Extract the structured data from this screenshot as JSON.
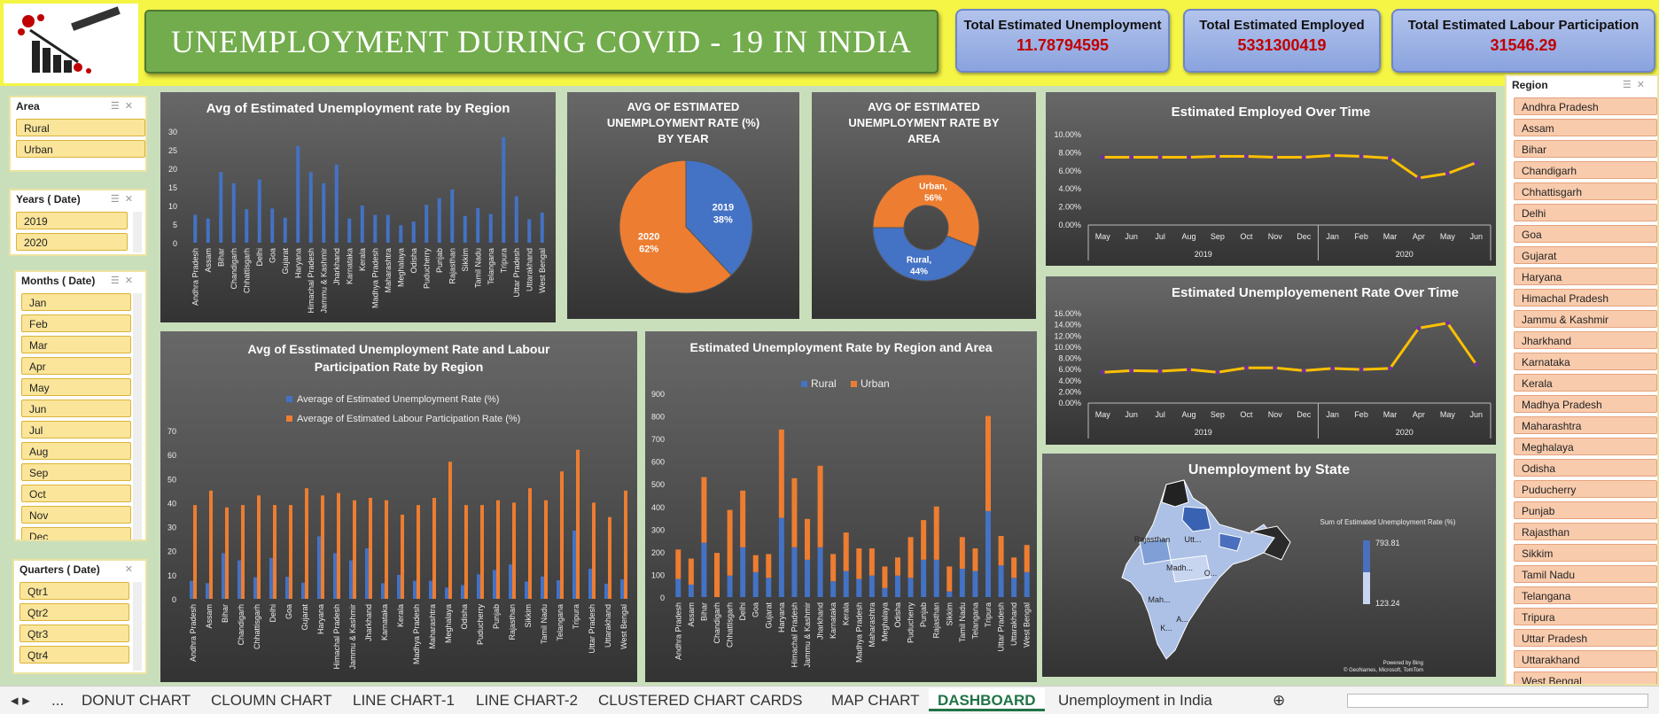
{
  "title": "UNEMPLOYMENT DURING COVID - 19 IN INDIA",
  "cards": [
    {
      "label": "Total Estimated Unemployment",
      "value": "11.78794595"
    },
    {
      "label": "Total Estimated Employed",
      "value": "5331300419"
    },
    {
      "label": "Total Estimated Labour Participation",
      "value": "31546.29"
    }
  ],
  "slicers": {
    "area": {
      "title": "Area",
      "items": [
        "Rural",
        "Urban"
      ]
    },
    "years": {
      "title": "Years ( Date)",
      "items": [
        "2019",
        "2020"
      ]
    },
    "months": {
      "title": "Months ( Date)",
      "items": [
        "Jan",
        "Feb",
        "Mar",
        "Apr",
        "May",
        "Jun",
        "Jul",
        "Aug",
        "Sep",
        "Oct",
        "Nov",
        "Dec"
      ]
    },
    "quarters": {
      "title": "Quarters ( Date)",
      "items": [
        "Qtr1",
        "Qtr2",
        "Qtr3",
        "Qtr4"
      ]
    },
    "region": {
      "title": "Region",
      "items": [
        "Andhra Pradesh",
        "Assam",
        "Bihar",
        "Chandigarh",
        "Chhattisgarh",
        "Delhi",
        "Goa",
        "Gujarat",
        "Haryana",
        "Himachal Pradesh",
        "Jammu & Kashmir",
        "Jharkhand",
        "Karnataka",
        "Kerala",
        "Madhya Pradesh",
        "Maharashtra",
        "Meghalaya",
        "Odisha",
        "Puducherry",
        "Punjab",
        "Rajasthan",
        "Sikkim",
        "Tamil Nadu",
        "Telangana",
        "Tripura",
        "Uttar Pradesh",
        "Uttarakhand",
        "West Bengal"
      ]
    }
  },
  "tabs": [
    "...",
    "DONUT CHART",
    "CLOUMN CHART",
    "LINE CHART-1",
    "LINE CHART-2",
    "CLUSTERED CHART",
    "CARDS",
    "MAP CHART",
    "DASHBOARD",
    "Unemployment in India"
  ],
  "active_tab": "DASHBOARD",
  "colors": {
    "blue": "#4472c4",
    "orange": "#ed7d31",
    "line": "#ffc000",
    "marker": "#7030a0"
  },
  "chart_data": [
    {
      "id": "region_bar",
      "type": "bar",
      "title": "Avg of Estimated Unemployment rate by Region",
      "categories": [
        "Andhra Pradesh",
        "Assam",
        "Bihar",
        "Chandigarh",
        "Chhattisgarh",
        "Delhi",
        "Goa",
        "Gujarat",
        "Haryana",
        "Himachal Pradesh",
        "Jammu & Kashmir",
        "Jharkhand",
        "Karnataka",
        "Kerala",
        "Madhya Pradesh",
        "Maharashtra",
        "Meghalaya",
        "Odisha",
        "Puducherry",
        "Punjab",
        "Rajasthan",
        "Sikkim",
        "Tamil Nadu",
        "Telangana",
        "Tripura",
        "Uttar Pradesh",
        "Uttarakhand",
        "West Bengal"
      ],
      "values": [
        7.5,
        6.5,
        19,
        16,
        9,
        17,
        9.2,
        6.7,
        26,
        19,
        16,
        21,
        6.5,
        10,
        7.5,
        7.5,
        4.7,
        5.7,
        10.2,
        12,
        14.3,
        7.2,
        9.3,
        7.7,
        28.4,
        12.5,
        6.3,
        8.1
      ],
      "ylim": [
        0,
        30
      ],
      "yticks": [
        0,
        5,
        10,
        15,
        20,
        25,
        30
      ],
      "grid": false
    },
    {
      "id": "year_pie",
      "type": "pie",
      "title": "AVG OF ESTIMATED UNEMPLOYMENT RATE (%) BY YEAR",
      "slices": [
        {
          "label": "2019",
          "value": 38,
          "text": "38%"
        },
        {
          "label": "2020",
          "value": 62,
          "text": "62%"
        }
      ]
    },
    {
      "id": "area_donut",
      "type": "pie",
      "title": "AVG OF ESTIMATED UNEMPLOYMENT RATE BY AREA",
      "slices": [
        {
          "label": "Urban,",
          "value": 56,
          "text": "56%"
        },
        {
          "label": "Rural,",
          "value": 44,
          "text": "44%"
        }
      ]
    },
    {
      "id": "employed_line",
      "type": "line",
      "title": "Estimated Employed Over Time",
      "x": [
        "May",
        "Jun",
        "Jul",
        "Aug",
        "Sep",
        "Oct",
        "Nov",
        "Dec",
        "Jan",
        "Feb",
        "Mar",
        "Apr",
        "May",
        "Jun"
      ],
      "groups": [
        {
          "label": "2019",
          "count": 8
        },
        {
          "label": "2020",
          "count": 6
        }
      ],
      "values": [
        7.5,
        7.5,
        7.5,
        7.5,
        7.6,
        7.6,
        7.5,
        7.5,
        7.7,
        7.6,
        7.4,
        5.2,
        5.7,
        6.9
      ],
      "yticks": [
        "0.00%",
        "2.00%",
        "4.00%",
        "6.00%",
        "8.00%",
        "10.00%"
      ],
      "ylim": [
        0,
        10
      ]
    },
    {
      "id": "unemp_line",
      "type": "line",
      "title": "Estimated Unemployemenent Rate Over Time",
      "x": [
        "May",
        "Jun",
        "Jul",
        "Aug",
        "Sep",
        "Oct",
        "Nov",
        "Dec",
        "Jan",
        "Feb",
        "Mar",
        "Apr",
        "May",
        "Jun"
      ],
      "groups": [
        {
          "label": "2019",
          "count": 8
        },
        {
          "label": "2020",
          "count": 6
        }
      ],
      "values": [
        5.5,
        5.8,
        5.7,
        6.0,
        5.5,
        6.3,
        6.3,
        5.8,
        6.2,
        6.0,
        6.2,
        13.4,
        14.3,
        6.9
      ],
      "yticks": [
        "0.00%",
        "2.00%",
        "4.00%",
        "6.00%",
        "8.00%",
        "10.00%",
        "12.00%",
        "14.00%",
        "16.00%"
      ],
      "ylim": [
        0,
        16
      ]
    },
    {
      "id": "clustered",
      "type": "bar",
      "title": "Avg of Esstimated Unemployment Rate and Labour Participation Rate by Region",
      "categories": [
        "Andhra Pradesh",
        "Assam",
        "Bihar",
        "Chandigarh",
        "Chhattisgarh",
        "Delhi",
        "Goa",
        "Gujarat",
        "Haryana",
        "Himachal Pradesh",
        "Jammu & Kashmir",
        "Jharkhand",
        "Karnataka",
        "Kerala",
        "Madhya Pradesh",
        "Maharashtra",
        "Meghalaya",
        "Odisha",
        "Puducherry",
        "Punjab",
        "Rajasthan",
        "Sikkim",
        "Tamil Nadu",
        "Telangana",
        "Tripura",
        "Uttar Pradesh",
        "Uttarakhand",
        "West Bengal"
      ],
      "series": [
        {
          "name": "Average of  Estimated Unemployment Rate (%)",
          "values": [
            7.5,
            6.5,
            19,
            16,
            9,
            17,
            9.2,
            6.7,
            26,
            19,
            16,
            21,
            6.5,
            10,
            7.5,
            7.5,
            4.7,
            5.7,
            10.2,
            12,
            14.3,
            7.2,
            9.3,
            7.7,
            28.4,
            12.5,
            6.3,
            8.1
          ]
        },
        {
          "name": "Average of  Estimated Labour Participation Rate (%)",
          "values": [
            39,
            45,
            38,
            39,
            43,
            39,
            39,
            46,
            43,
            44,
            41,
            42,
            41,
            35,
            39,
            42,
            57,
            39,
            39,
            41,
            40,
            46,
            41,
            53,
            62,
            40,
            34,
            45
          ]
        }
      ],
      "ylim": [
        0,
        70
      ],
      "yticks": [
        0,
        10,
        20,
        30,
        40,
        50,
        60,
        70
      ]
    },
    {
      "id": "stacked",
      "type": "bar",
      "title": "Estimated Unemployment Rate by Region and Area",
      "categories": [
        "Andhra Pradesh",
        "Assam",
        "Bihar",
        "Chandigarh",
        "Chhattisgarh",
        "Delhi",
        "Goa",
        "Gujarat",
        "Haryana",
        "Himachal Pradesh",
        "Jammu & Kashmir",
        "Jharkhand",
        "Karnataka",
        "Kerala",
        "Madhya Pradesh",
        "Maharashtra",
        "Meghalaya",
        "Odisha",
        "Puducherry",
        "Punjab",
        "Rajasthan",
        "Sikkim",
        "Tamil Nadu",
        "Telangana",
        "Tripura",
        "Uttar Pradesh",
        "Uttarakhand",
        "West Bengal"
      ],
      "series": [
        {
          "name": "Rural",
          "values": [
            80,
            55,
            240,
            0,
            95,
            220,
            110,
            85,
            350,
            220,
            165,
            220,
            70,
            115,
            80,
            95,
            40,
            95,
            85,
            165,
            165,
            25,
            125,
            115,
            380,
            140,
            85,
            110
          ]
        },
        {
          "name": "Urban",
          "values": [
            130,
            115,
            290,
            195,
            290,
            250,
            75,
            105,
            390,
            305,
            180,
            360,
            120,
            170,
            135,
            120,
            95,
            80,
            180,
            175,
            235,
            110,
            140,
            100,
            420,
            130,
            90,
            120
          ]
        }
      ],
      "ylim": [
        0,
        900
      ],
      "yticks": [
        0,
        100,
        200,
        300,
        400,
        500,
        600,
        700,
        800,
        900
      ]
    },
    {
      "id": "map",
      "type": "map",
      "title": "Unemployment by State",
      "legend_title": "Sum of  Estimated Unemployment Rate (%)",
      "legend_max": "793.81",
      "legend_min": "123.24",
      "labels": [
        "Rajasthan",
        "Utt...",
        "Madh...",
        "Mah...",
        "O...",
        "K...",
        "A..."
      ],
      "credit1": "Powered by Bing",
      "credit2": "© GeoNames, Microsoft, TomTom"
    }
  ]
}
